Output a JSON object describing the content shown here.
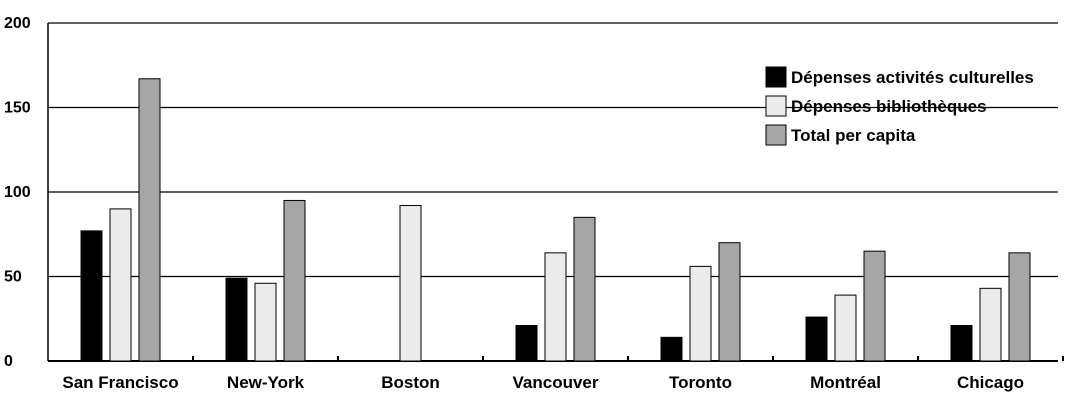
{
  "chart_data": {
    "type": "bar",
    "title": "",
    "xlabel": "",
    "ylabel": "",
    "ylim": [
      0,
      200
    ],
    "yticks": [
      0,
      50,
      100,
      150,
      200
    ],
    "grid": true,
    "legend_position": "top-right",
    "categories": [
      "San Francisco",
      "New-York",
      "Boston",
      "Vancouver",
      "Toronto",
      "Montréal",
      "Chicago"
    ],
    "series": [
      {
        "name": "Dépenses activités culturelles",
        "color": "#000000",
        "values": [
          77,
          49,
          null,
          21,
          14,
          26,
          21
        ]
      },
      {
        "name": "Dépenses bibliothèques",
        "color": "#ebebeb",
        "values": [
          90,
          46,
          92,
          64,
          56,
          39,
          43
        ]
      },
      {
        "name": "Total per capita",
        "color": "#a6a6a6",
        "values": [
          167,
          95,
          null,
          85,
          70,
          65,
          64
        ]
      }
    ]
  }
}
